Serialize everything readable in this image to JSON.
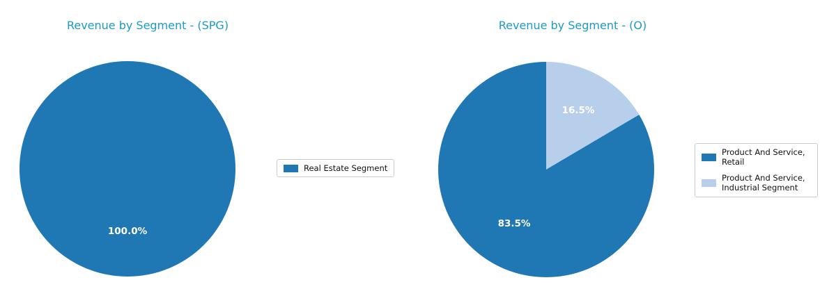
{
  "chart_data": [
    {
      "type": "pie",
      "title": "Revenue by Segment - (SPG)",
      "title_color": "#1b9ac8",
      "labels": [
        "Real Estate Segment"
      ],
      "values": [
        100.0
      ],
      "autopct_labels": [
        "100.0%"
      ],
      "colors": [
        "#1f77b4"
      ],
      "start_angle": 90,
      "counterclock": true,
      "legend_position": "right"
    },
    {
      "type": "pie",
      "title": "Revenue by Segment - (O)",
      "title_color": "#1b9ac8",
      "labels": [
        "Product And Service, Retail",
        "Product And Service, Industrial Segment"
      ],
      "values": [
        83.5,
        16.5
      ],
      "autopct_labels": [
        "83.5%",
        "16.5%"
      ],
      "colors": [
        "#1f77b4",
        "#b8cfec"
      ],
      "start_angle": 90,
      "counterclock": true,
      "legend_position": "right"
    }
  ]
}
